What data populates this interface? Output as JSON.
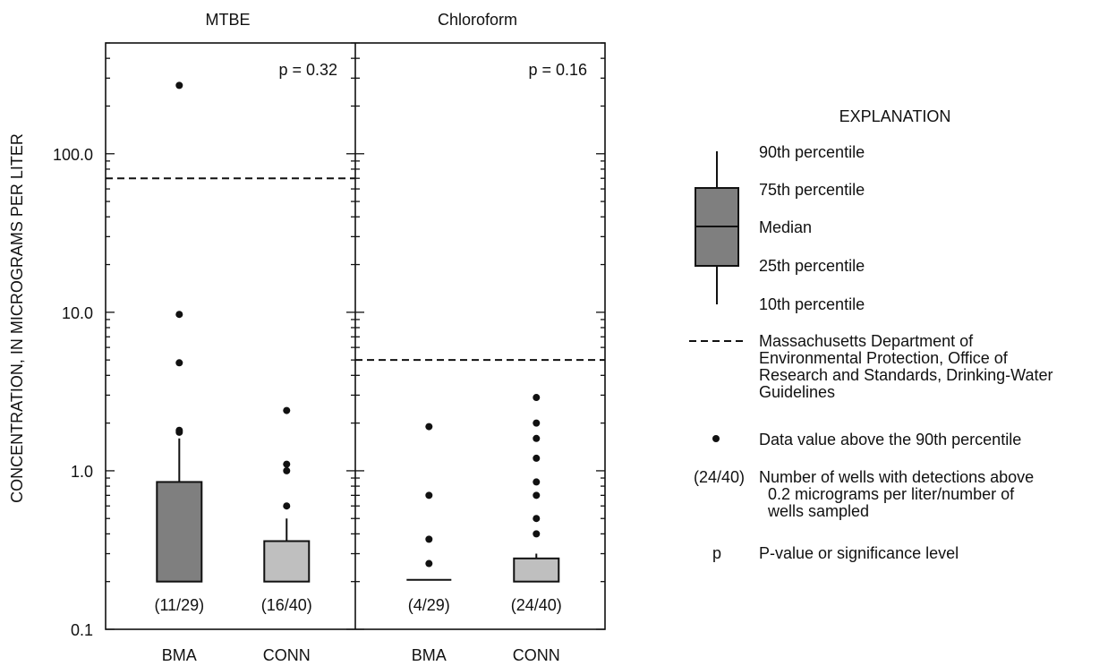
{
  "chart_data": {
    "type": "box",
    "ylabel": "CONCENTRATION, IN MICROGRAMS PER LITER",
    "yscale": "log",
    "ylim": [
      0.1,
      500
    ],
    "yticks": [
      {
        "value": 0.1,
        "label": "0.1"
      },
      {
        "value": 1.0,
        "label": "1.0"
      },
      {
        "value": 10.0,
        "label": "10.0"
      },
      {
        "value": 100.0,
        "label": "100.0"
      }
    ],
    "panels": [
      {
        "title": "MTBE",
        "p_label": "p = 0.32",
        "guideline": 70,
        "categories": [
          "BMA",
          "CONN"
        ],
        "boxes": [
          {
            "category": "BMA",
            "count_label": "(11/29)",
            "q1": 0.2,
            "median": 0.2,
            "q3": 0.85,
            "p90": 1.6,
            "outliers": [
              1.75,
              1.8,
              4.8,
              9.7,
              270
            ]
          },
          {
            "category": "CONN",
            "count_label": "(16/40)",
            "q1": 0.2,
            "median": 0.2,
            "q3": 0.36,
            "p90": 0.5,
            "outliers": [
              0.6,
              1.0,
              1.1,
              2.4
            ]
          }
        ]
      },
      {
        "title": "Chloroform",
        "p_label": "p = 0.16",
        "guideline": 5,
        "categories": [
          "BMA",
          "CONN"
        ],
        "boxes": [
          {
            "category": "BMA",
            "count_label": "(4/29)",
            "q1": 0.205,
            "median": 0.205,
            "q3": 0.205,
            "p90": 0.205,
            "outliers": [
              0.26,
              0.37,
              0.7,
              1.9
            ]
          },
          {
            "category": "CONN",
            "count_label": "(24/40)",
            "q1": 0.2,
            "median": 0.2,
            "q3": 0.28,
            "p90": 0.3,
            "outliers": [
              0.4,
              0.5,
              0.7,
              0.85,
              1.2,
              1.6,
              2.0,
              2.9
            ]
          }
        ]
      }
    ]
  },
  "explanation": {
    "title": "EXPLANATION",
    "p90": "90th percentile",
    "p75": "75th percentile",
    "median": "Median",
    "p25": "25th percentile",
    "p10": "10th percentile",
    "guideline": "Massachusetts Department of\nEnvironmental Protection, Office of\nResearch and Standards, Drinking-Water\nGuidelines",
    "outlier": "Data value above the 90th percentile",
    "count_symbol": "(24/40)",
    "count_desc": "Number of wells with detections above\n  0.2 micrograms per liter/number of\n  wells sampled",
    "p_symbol": "p",
    "p_desc": "P-value or significance level"
  },
  "colors": {
    "bma_fill": "#7f7f7f",
    "conn_fill": "#bfbfbf",
    "ink": "#111111"
  }
}
